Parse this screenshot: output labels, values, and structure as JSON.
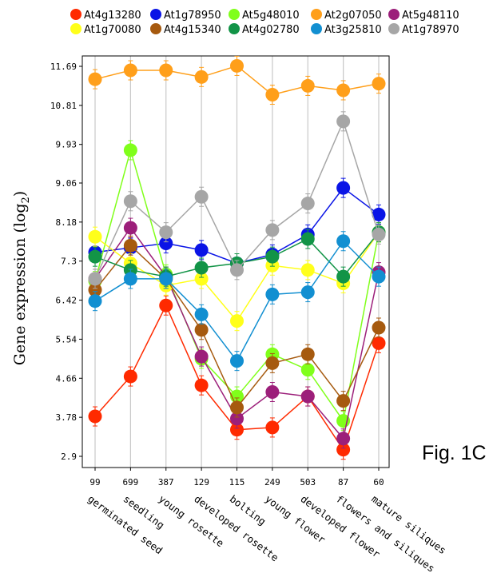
{
  "figure_label": "Fig. 1C",
  "chart_data": {
    "type": "line",
    "title": "",
    "ylabel": "Gene expression  (log",
    "ylabel_sub": "2",
    "ylabel_close": ")",
    "ylim": [
      2.9,
      11.69
    ],
    "yticks": [
      "2.9",
      "3.78",
      "4.66",
      "5.54",
      "6.42",
      "7.3",
      "8.18",
      "9.06",
      "9.93",
      "10.81",
      "11.69"
    ],
    "x_counts": [
      "99",
      "699",
      "387",
      "129",
      "115",
      "249",
      "503",
      "87",
      "60"
    ],
    "categories": [
      "germinated seed",
      "seedling",
      "young rosette",
      "developed rosette",
      "bolting",
      "young flower",
      "developed flower",
      "flowers and siliques",
      "mature siliques"
    ],
    "grid": "vertical",
    "legend_position": "top",
    "series": [
      {
        "name": "At4g13280",
        "color": "#ff2a00",
        "values": [
          3.8,
          4.7,
          6.3,
          4.5,
          3.5,
          3.55,
          4.25,
          3.05,
          5.45
        ]
      },
      {
        "name": "At1g78950",
        "color": "#0a14e6",
        "values": [
          7.5,
          7.6,
          7.7,
          7.55,
          7.25,
          7.45,
          7.9,
          8.95,
          8.35
        ]
      },
      {
        "name": "At5g48010",
        "color": "#80ff1a",
        "values": [
          6.85,
          9.8,
          7.0,
          5.1,
          4.25,
          5.2,
          4.85,
          3.7,
          7.95
        ]
      },
      {
        "name": "At2g07050",
        "color": "#ff9f1a",
        "values": [
          11.4,
          11.6,
          11.6,
          11.45,
          11.7,
          11.05,
          11.25,
          11.15,
          11.3
        ]
      },
      {
        "name": "At5g48110",
        "color": "#9c1f7a",
        "values": [
          6.9,
          8.05,
          6.95,
          5.15,
          3.75,
          4.35,
          4.25,
          3.3,
          7.05
        ]
      },
      {
        "name": "At1g70080",
        "color": "#ffff1a",
        "values": [
          7.85,
          7.25,
          6.75,
          6.9,
          5.95,
          7.2,
          7.1,
          6.8,
          7.95
        ]
      },
      {
        "name": "At4g15340",
        "color": "#a65a0f",
        "values": [
          6.65,
          7.65,
          6.9,
          5.75,
          4.0,
          5.0,
          5.2,
          4.15,
          5.8
        ]
      },
      {
        "name": "At4g02780",
        "color": "#129447",
        "values": [
          7.4,
          7.1,
          6.95,
          7.15,
          7.25,
          7.4,
          7.8,
          6.95,
          7.95
        ]
      },
      {
        "name": "At3g25810",
        "color": "#128fd1",
        "values": [
          6.4,
          6.9,
          6.9,
          6.1,
          5.05,
          6.55,
          6.6,
          7.75,
          6.95
        ]
      },
      {
        "name": "At1g78970",
        "color": "#a6a6a6",
        "values": [
          6.9,
          8.65,
          7.95,
          8.75,
          7.1,
          8.0,
          8.6,
          10.45,
          7.9
        ]
      }
    ]
  }
}
